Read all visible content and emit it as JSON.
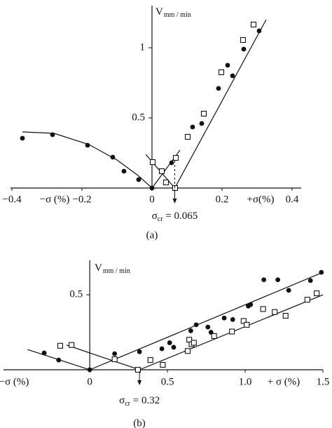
{
  "chart_data": [
    {
      "type": "scatter",
      "caption": "(a)",
      "ylabel": {
        "main": "V",
        "sub": "mm / min"
      },
      "xlabel_negative": "−σ (%)",
      "xlabel_positive": "+σ(%)",
      "xlim": [
        -0.404,
        0.426
      ],
      "ylim": [
        0,
        1.3
      ],
      "xticks": [
        {
          "value": -0.4,
          "label": "−0.4"
        },
        {
          "value": -0.2,
          "label": "−0.2"
        },
        0,
        0.2,
        0.4
      ],
      "yticks": [
        0.5,
        1
      ],
      "series": [
        {
          "marker": "circle",
          "color": "#111111",
          "x": [
            -0.37,
            -0.284,
            -0.184,
            -0.112,
            -0.08,
            -0.038,
            0,
            0.056,
            0.116,
            0.142,
            0.19,
            0.216,
            0.23,
            0.262,
            0.306
          ],
          "values": [
            0.355,
            0.38,
            0.305,
            0.22,
            0.12,
            0.06,
            0,
            0.18,
            0.435,
            0.46,
            0.71,
            0.875,
            0.8,
            0.99,
            1.12
          ]
        },
        {
          "marker": "square",
          "color": "#111111",
          "x": [
            0.002,
            0.028,
            0.04,
            0.066,
            0.068,
            0.102,
            0.148,
            0.198,
            0.26,
            0.29
          ],
          "values": [
            0.185,
            0.12,
            0.04,
            0,
            0.215,
            0.365,
            0.53,
            0.825,
            1.055,
            1.165
          ]
        }
      ],
      "fits": [
        {
          "x": [
            -0.37,
            -0.28,
            -0.18,
            -0.1,
            -0.04,
            0
          ],
          "values": [
            0.4,
            0.39,
            0.31,
            0.2,
            0.09,
            0
          ]
        },
        {
          "x": [
            0.065,
            0.326
          ],
          "values": [
            0,
            1.2
          ]
        },
        {
          "x": [
            -0.018,
            0.065
          ],
          "values": [
            0.24,
            0
          ]
        },
        {
          "x": [
            0,
            0.08
          ],
          "values": [
            0,
            0.27
          ]
        }
      ],
      "critical": {
        "value": 0.065,
        "symbol": "σ",
        "subscript": "cr",
        "label": " = 0.065"
      }
    },
    {
      "type": "scatter",
      "caption": "(b)",
      "ylabel": {
        "main": "V",
        "sub": "mm / min"
      },
      "xlabel_negative": "−σ (%)",
      "xlabel_positive": "+ σ (%)",
      "xlim": [
        -0.555,
        1.5
      ],
      "ylim": [
        0,
        0.73
      ],
      "xticks": [
        0,
        0.5,
        {
          "value": 1,
          "label": "1.0"
        },
        1.5
      ],
      "yticks": [
        0.5
      ],
      "series": [
        {
          "marker": "circle",
          "color": "#111111",
          "x": [
            -0.293,
            -0.2,
            0,
            0.16,
            0.32,
            0.464,
            0.514,
            0.54,
            0.65,
            0.685,
            0.76,
            0.78,
            0.865,
            0.92,
            1.02,
            1.035,
            1.12,
            1.21,
            1.28,
            1.42,
            1.49
          ],
          "values": [
            0.112,
            0.065,
            0,
            0.107,
            0.12,
            0.14,
            0.18,
            0.15,
            0.26,
            0.3,
            0.285,
            0.25,
            0.345,
            0.335,
            0.425,
            0.435,
            0.6,
            0.6,
            0.53,
            0.595,
            0.65
          ]
        },
        {
          "marker": "square",
          "color": "#111111",
          "x": [
            -0.19,
            -0.117,
            0.16,
            0.31,
            0.39,
            0.47,
            0.63,
            0.64,
            0.655,
            0.67,
            0.8,
            0.915,
            0.99,
            1.01,
            1.115,
            1.19,
            1.26,
            1.4,
            1.46
          ],
          "values": [
            0.16,
            0.165,
            0.07,
            0,
            0.065,
            0.033,
            0.125,
            0.2,
            0.17,
            0.18,
            0.225,
            0.255,
            0.325,
            0.3,
            0.405,
            0.385,
            0.36,
            0.467,
            0.51
          ]
        }
      ],
      "fits": [
        {
          "x": [
            -0.4,
            0,
            1.5
          ],
          "values": [
            0.135,
            0,
            0.65
          ]
        },
        {
          "x": [
            -0.15,
            0.32,
            1.5
          ],
          "values": [
            0.165,
            0,
            0.5
          ]
        }
      ],
      "critical": {
        "value": 0.32,
        "symbol": "σ",
        "subscript": "cr",
        "label": " = 0.32"
      }
    }
  ]
}
